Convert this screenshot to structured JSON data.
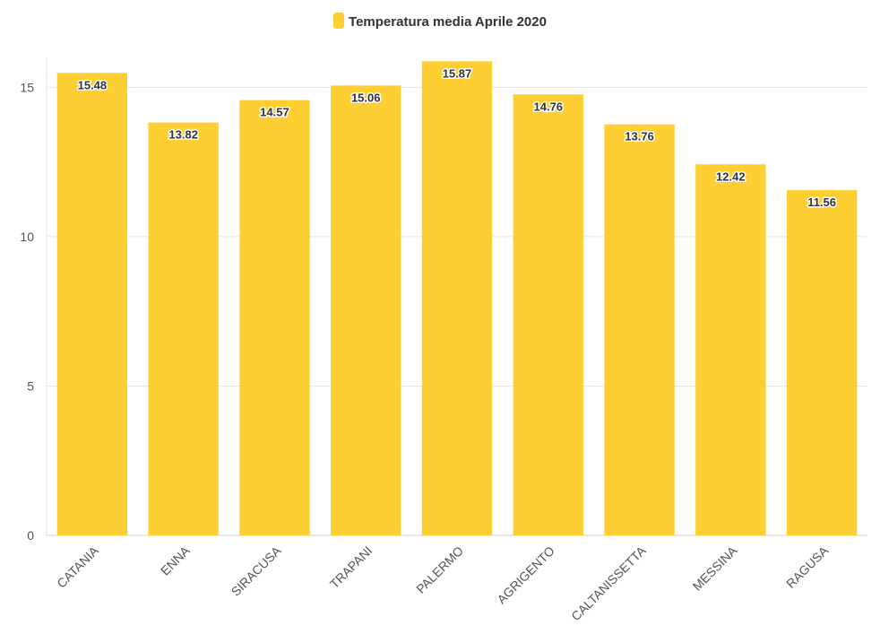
{
  "chart_data": {
    "type": "bar",
    "categories": [
      "CATANIA",
      "ENNA",
      "SIRACUSA",
      "TRAPANI",
      "PALERMO",
      "AGRIGENTO",
      "CALTANISSETTA",
      "MESSINA",
      "RAGUSA"
    ],
    "series": [
      {
        "name": "Temperatura media Aprile 2020",
        "values": [
          15.48,
          13.82,
          14.57,
          15.06,
          15.87,
          14.76,
          13.76,
          12.42,
          11.56
        ],
        "data_labels": [
          "15.48",
          "13.82",
          "14.57",
          "15.06",
          "15.87",
          "14.76",
          "13.76",
          "12.42",
          "11.56"
        ]
      }
    ],
    "y_ticks": [
      0,
      5,
      10,
      15
    ],
    "y_tick_labels": [
      "0",
      "5",
      "10",
      "15"
    ],
    "ylim": [
      0,
      16
    ],
    "grid": true,
    "legend_position": "top-center",
    "colors": {
      "bar": "#fecf33",
      "grid": "#e6e6e6",
      "axis_text": "#555555",
      "label_text": "#333333"
    }
  }
}
